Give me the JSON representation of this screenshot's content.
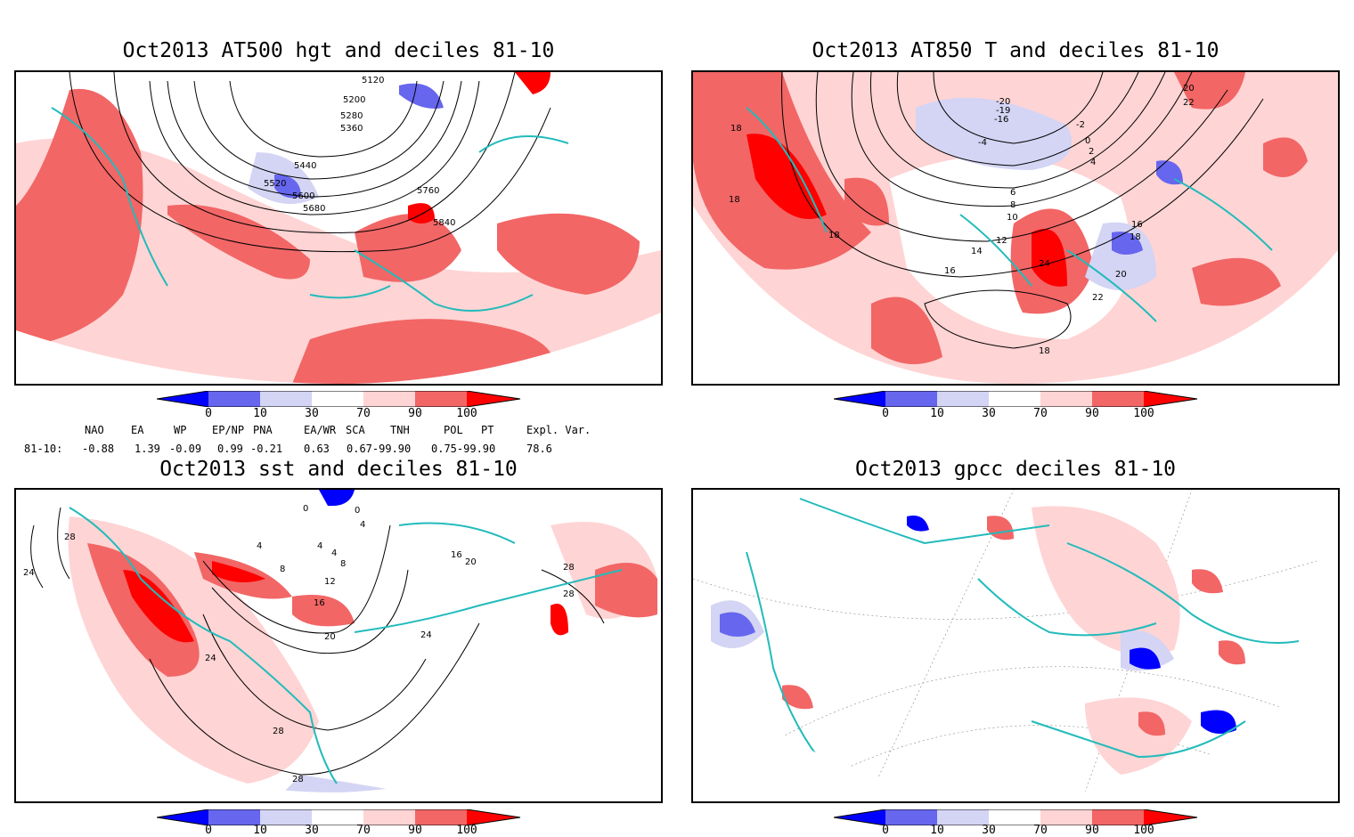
{
  "colors": {
    "deep_blue": "#0000ff",
    "mid_blue": "#6666ee",
    "light_blue": "#d4d4f4",
    "light_red": "#ffd4d4",
    "mid_red": "#f26666",
    "deep_red": "#ff0000",
    "coast": "#22bbbb",
    "contour": "#000000",
    "background": "#ffffff"
  },
  "panels": {
    "top_left": {
      "title": "Oct2013 AT500 hgt and deciles 81-10"
    },
    "top_right": {
      "title": "Oct2013 AT850 T and deciles 81-10"
    },
    "bottom_left": {
      "title": "Oct2013 sst and deciles 81-10"
    },
    "bottom_right": {
      "title": "Oct2013 gpcc deciles 81-10"
    }
  },
  "contour_labels": {
    "hgt": [
      "5120",
      "5200",
      "5280",
      "5360",
      "5440",
      "5520",
      "5600",
      "5680",
      "5760",
      "5840"
    ],
    "t850": [
      "-20",
      "-19",
      "-16",
      "-4",
      "-2",
      "0",
      "2",
      "4",
      "6",
      "8",
      "10",
      "12",
      "14",
      "16",
      "18",
      "20",
      "22",
      "24",
      "16",
      "18",
      "20",
      "22",
      "18",
      "18",
      "18"
    ],
    "sst": [
      "28",
      "24",
      "0",
      "0",
      "4",
      "4",
      "8",
      "12",
      "16",
      "20",
      "24",
      "24",
      "28",
      "28",
      "28",
      "16",
      "20",
      "28",
      "4",
      "4",
      "8"
    ]
  },
  "colorbar": {
    "tick_labels": [
      "0",
      "10",
      "30",
      "70",
      "90",
      "100"
    ]
  },
  "teleconnections": {
    "headers": [
      "NAO",
      "EA",
      "WP",
      "EP/NP",
      "PNA",
      "EA/WR",
      "SCA",
      "TNH",
      "POL",
      "PT",
      "Expl. Var."
    ],
    "row_label": "81-10:",
    "values": [
      "-0.88",
      "1.39",
      "-0.09",
      "0.99",
      "-0.21",
      "0.63",
      "0.67-99.90",
      "0.75-99.90",
      "78.6"
    ]
  }
}
